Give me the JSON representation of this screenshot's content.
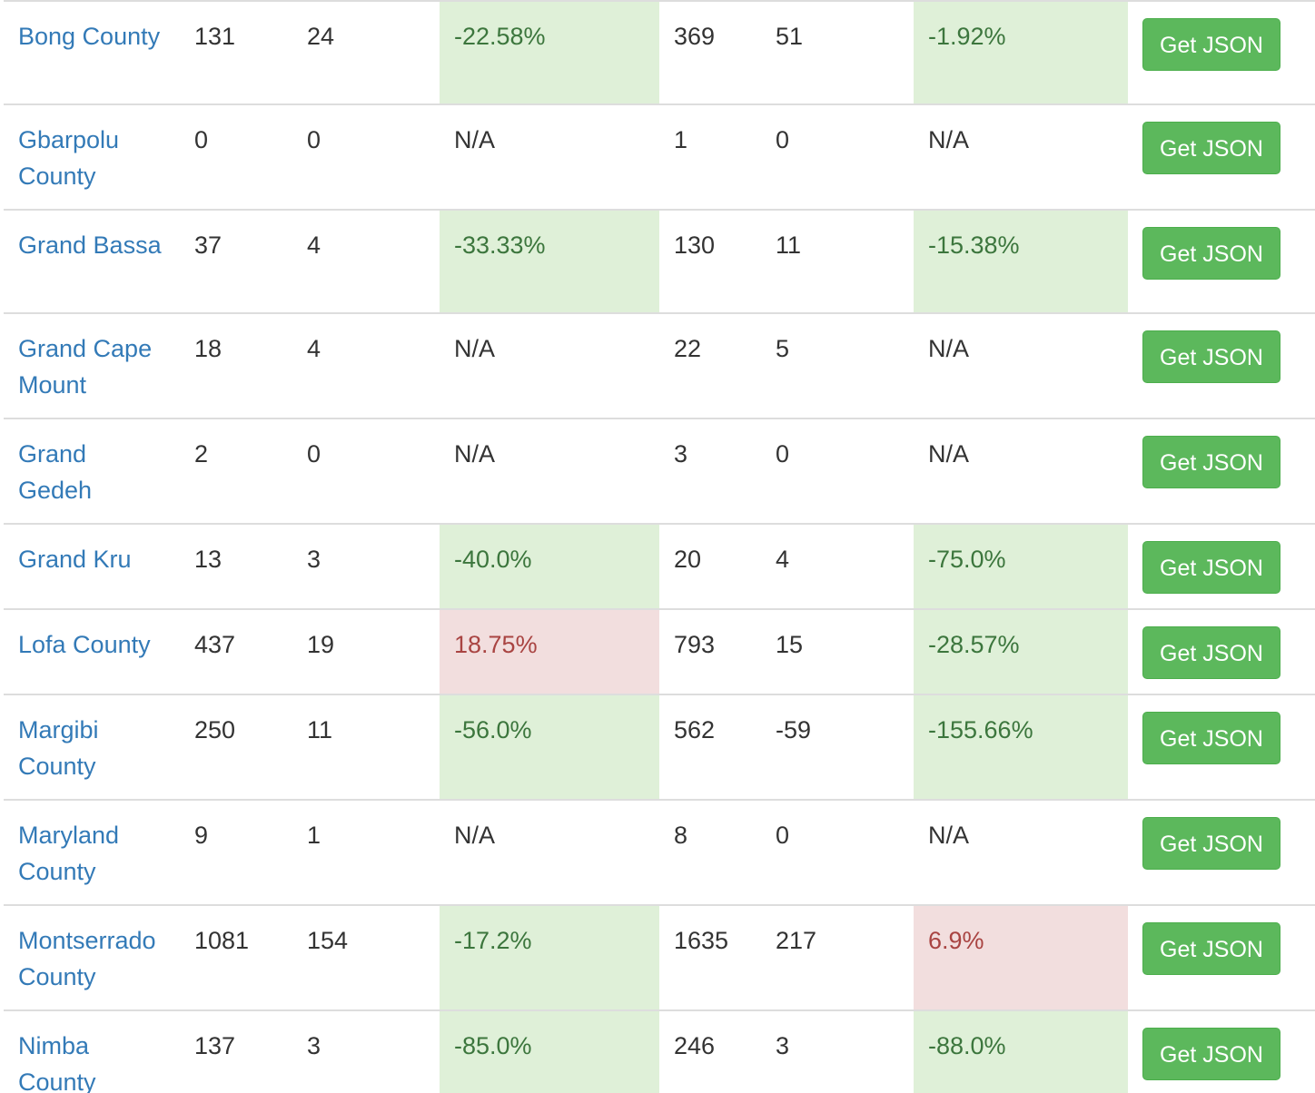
{
  "colors": {
    "link": "#337ab7",
    "success_bg": "#dff0d8",
    "success_text": "#3c763d",
    "danger_bg": "#f2dede",
    "danger_text": "#a94442",
    "button_bg": "#5cb85c"
  },
  "rows": [
    {
      "name": "Bong County",
      "a": "131",
      "b": "24",
      "pct1": "-22.58%",
      "pct1_status": "pos",
      "d": "369",
      "e": "51",
      "pct2": "-1.92%",
      "pct2_status": "pos",
      "button": "Get JSON"
    },
    {
      "name": "Gbarpolu County",
      "a": "0",
      "b": "0",
      "pct1": "N/A",
      "pct1_status": "none",
      "d": "1",
      "e": "0",
      "pct2": "N/A",
      "pct2_status": "none",
      "button": "Get JSON"
    },
    {
      "name": "Grand Bassa",
      "a": "37",
      "b": "4",
      "pct1": "-33.33%",
      "pct1_status": "pos",
      "d": "130",
      "e": "11",
      "pct2": "-15.38%",
      "pct2_status": "pos",
      "button": "Get JSON"
    },
    {
      "name": "Grand Cape Mount",
      "a": "18",
      "b": "4",
      "pct1": "N/A",
      "pct1_status": "none",
      "d": "22",
      "e": "5",
      "pct2": "N/A",
      "pct2_status": "none",
      "button": "Get JSON"
    },
    {
      "name": "Grand Gedeh",
      "a": "2",
      "b": "0",
      "pct1": "N/A",
      "pct1_status": "none",
      "d": "3",
      "e": "0",
      "pct2": "N/A",
      "pct2_status": "none",
      "button": "Get JSON"
    },
    {
      "name": "Grand Kru",
      "a": "13",
      "b": "3",
      "pct1": "-40.0%",
      "pct1_status": "pos",
      "d": "20",
      "e": "4",
      "pct2": "-75.0%",
      "pct2_status": "pos",
      "button": "Get JSON"
    },
    {
      "name": "Lofa County",
      "a": "437",
      "b": "19",
      "pct1": "18.75%",
      "pct1_status": "neg",
      "d": "793",
      "e": "15",
      "pct2": "-28.57%",
      "pct2_status": "pos",
      "button": "Get JSON"
    },
    {
      "name": "Margibi County",
      "a": "250",
      "b": "11",
      "pct1": "-56.0%",
      "pct1_status": "pos",
      "d": "562",
      "e": "-59",
      "pct2": "-155.66%",
      "pct2_status": "pos",
      "button": "Get JSON"
    },
    {
      "name": "Maryland County",
      "a": "9",
      "b": "1",
      "pct1": "N/A",
      "pct1_status": "none",
      "d": "8",
      "e": "0",
      "pct2": "N/A",
      "pct2_status": "none",
      "button": "Get JSON"
    },
    {
      "name": "Montserrado County",
      "a": "1081",
      "b": "154",
      "pct1": "-17.2%",
      "pct1_status": "pos",
      "d": "1635",
      "e": "217",
      "pct2": "6.9%",
      "pct2_status": "neg",
      "button": "Get JSON"
    },
    {
      "name": "Nimba County",
      "a": "137",
      "b": "3",
      "pct1": "-85.0%",
      "pct1_status": "pos",
      "d": "246",
      "e": "3",
      "pct2": "-88.0%",
      "pct2_status": "pos",
      "button": "Get JSON"
    }
  ]
}
